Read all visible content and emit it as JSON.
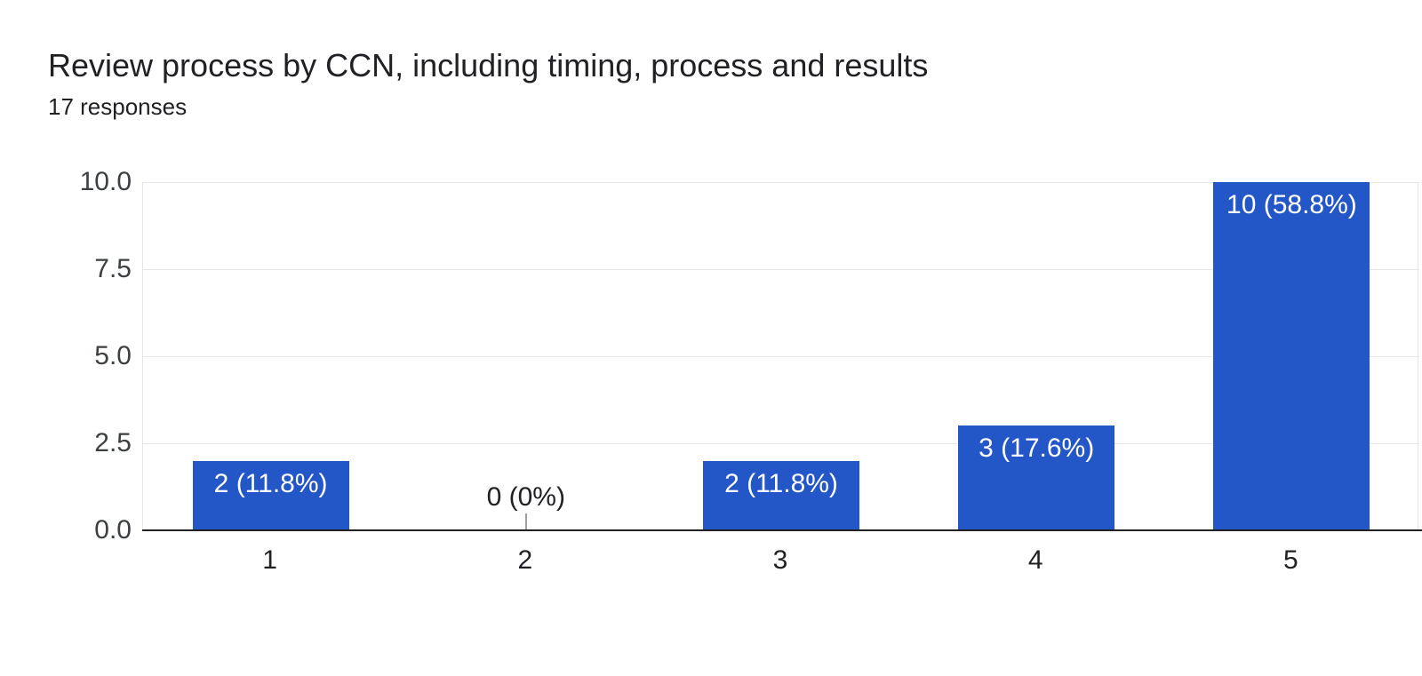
{
  "header": {
    "title": "Review process by CCN, including timing, process and results",
    "subtitle": "17 responses"
  },
  "chart_data": {
    "type": "bar",
    "title": "Review process by CCN, including timing, process and results",
    "subtitle": "17 responses",
    "total_responses": 17,
    "categories": [
      "1",
      "2",
      "3",
      "4",
      "5"
    ],
    "values": [
      2,
      0,
      2,
      3,
      10
    ],
    "bar_labels": [
      "2 (11.8%)",
      "0 (0%)",
      "2 (11.8%)",
      "3 (17.6%)",
      "10 (58.8%)"
    ],
    "xlabel": "",
    "ylabel": "",
    "ylim": [
      0,
      10
    ],
    "ytick_labels": [
      "0.0",
      "2.5",
      "5.0",
      "7.5",
      "10.0"
    ],
    "grid": true,
    "legend": "none",
    "colors": {
      "bar": "#2356c6",
      "bar_label_text": "#ffffff",
      "zero_label_text": "#202124",
      "zero_label_stem": "#9e9e9e",
      "gridline": "#e6e6e6",
      "axis_line": "#202124",
      "ytick_text": "#3c4043",
      "xtick_text": "#202124",
      "title_text": "#202124",
      "background": "#ffffff"
    }
  }
}
